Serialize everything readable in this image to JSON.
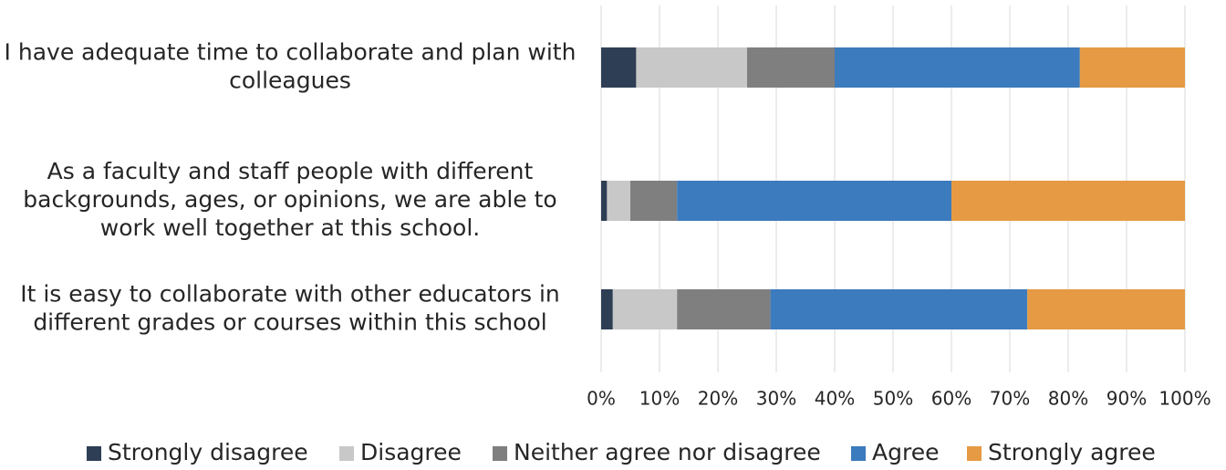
{
  "chart_data": {
    "type": "bar",
    "orientation": "horizontal",
    "stacked": "percent",
    "categories": [
      [
        "I have adequate time to collaborate and plan with",
        "colleagues"
      ],
      [
        "As a faculty and staff people with different",
        "backgrounds, ages, or opinions, we are able to",
        "work well together at this school."
      ],
      [
        "It is easy to collaborate with other educators in",
        "different grades or courses within this school"
      ]
    ],
    "series": [
      {
        "name": "Strongly disagree",
        "color": "#2e3e55",
        "values": [
          6,
          1,
          2
        ]
      },
      {
        "name": "Disagree",
        "color": "#c8c8c8",
        "values": [
          19,
          4,
          11
        ]
      },
      {
        "name": "Neither agree nor disagree",
        "color": "#7f7f7f",
        "values": [
          15,
          8,
          16
        ]
      },
      {
        "name": "Agree",
        "color": "#3c7bbd",
        "values": [
          42,
          47,
          44
        ]
      },
      {
        "name": "Strongly agree",
        "color": "#e59a43",
        "values": [
          18,
          40,
          27
        ]
      }
    ],
    "xlim": [
      0,
      100
    ],
    "xticks": [
      "0%",
      "10%",
      "20%",
      "30%",
      "40%",
      "50%",
      "60%",
      "70%",
      "80%",
      "90%",
      "100%"
    ],
    "grid": "vertical",
    "legend_position": "bottom"
  }
}
